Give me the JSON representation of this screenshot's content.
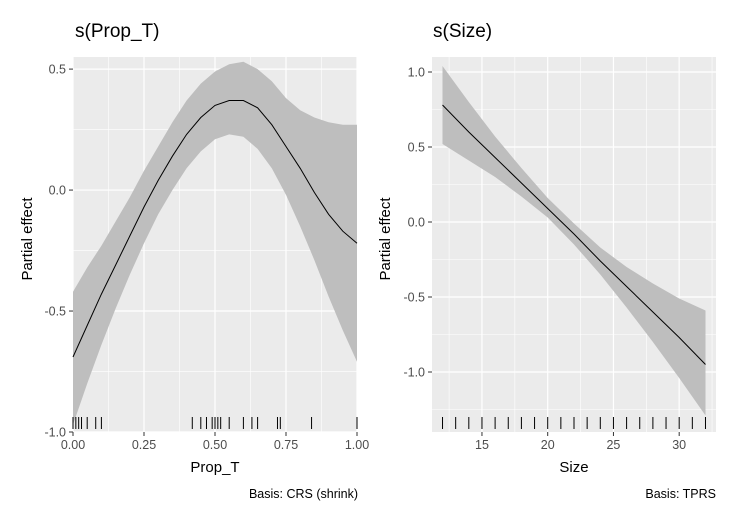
{
  "chart_data": [
    {
      "type": "line",
      "title": "s(Prop_T)",
      "xlabel": "Prop_T",
      "ylabel": "Partial effect",
      "caption": "Basis: CRS (shrink)",
      "xlim": [
        0.0,
        1.0
      ],
      "ylim": [
        -1.0,
        0.55
      ],
      "x_ticks": [
        0.0,
        0.25,
        0.5,
        0.75,
        1.0
      ],
      "x_tick_labels": [
        "0.00",
        "0.25",
        "0.50",
        "0.75",
        "1.00"
      ],
      "y_ticks": [
        -1.0,
        -0.5,
        0.0,
        0.5
      ],
      "y_tick_labels": [
        "-1.0",
        "-0.5",
        "0.0",
        "0.5"
      ],
      "series": [
        {
          "x": [
            0.0,
            0.05,
            0.1,
            0.15,
            0.2,
            0.25,
            0.3,
            0.35,
            0.4,
            0.45,
            0.5,
            0.55,
            0.6,
            0.65,
            0.7,
            0.75,
            0.8,
            0.85,
            0.9,
            0.95,
            1.0
          ],
          "y": [
            -0.69,
            -0.56,
            -0.43,
            -0.31,
            -0.19,
            -0.07,
            0.04,
            0.14,
            0.23,
            0.3,
            0.35,
            0.37,
            0.37,
            0.34,
            0.27,
            0.18,
            0.09,
            -0.01,
            -0.1,
            -0.17,
            -0.22
          ],
          "lower": [
            -0.97,
            -0.8,
            -0.64,
            -0.49,
            -0.35,
            -0.22,
            -0.1,
            0.0,
            0.09,
            0.16,
            0.21,
            0.23,
            0.22,
            0.17,
            0.09,
            -0.02,
            -0.15,
            -0.29,
            -0.44,
            -0.58,
            -0.71
          ],
          "upper": [
            -0.42,
            -0.32,
            -0.23,
            -0.13,
            -0.03,
            0.08,
            0.18,
            0.28,
            0.37,
            0.44,
            0.49,
            0.52,
            0.53,
            0.5,
            0.45,
            0.38,
            0.33,
            0.3,
            0.28,
            0.27,
            0.27
          ]
        }
      ],
      "rug": [
        0.0,
        0.01,
        0.02,
        0.03,
        0.05,
        0.08,
        0.1,
        0.42,
        0.45,
        0.47,
        0.49,
        0.5,
        0.51,
        0.52,
        0.55,
        0.6,
        0.63,
        0.65,
        0.72,
        0.73,
        0.84,
        1.0
      ],
      "grid": true
    },
    {
      "type": "line",
      "title": "s(Size)",
      "xlabel": "Size",
      "ylabel": "Partial effect",
      "caption": "Basis: TPRS",
      "xlim": [
        11.2,
        32.8
      ],
      "ylim": [
        -1.4,
        1.1
      ],
      "x_ticks": [
        15,
        20,
        25,
        30
      ],
      "x_tick_labels": [
        "15",
        "20",
        "25",
        "30"
      ],
      "y_ticks": [
        -1.0,
        -0.5,
        0.0,
        0.5,
        1.0
      ],
      "y_tick_labels": [
        "-1.0",
        "-0.5",
        "0.0",
        "0.5",
        "1.0"
      ],
      "series": [
        {
          "x": [
            12,
            14,
            16,
            18,
            20,
            22,
            24,
            26,
            28,
            30,
            32
          ],
          "y": [
            0.78,
            0.6,
            0.43,
            0.26,
            0.09,
            -0.08,
            -0.26,
            -0.43,
            -0.6,
            -0.77,
            -0.95
          ],
          "lower": [
            0.52,
            0.41,
            0.3,
            0.17,
            0.03,
            -0.15,
            -0.35,
            -0.57,
            -0.8,
            -1.04,
            -1.29
          ],
          "upper": [
            1.04,
            0.8,
            0.57,
            0.36,
            0.16,
            -0.01,
            -0.17,
            -0.3,
            -0.41,
            -0.51,
            -0.59
          ]
        }
      ],
      "rug": [
        12,
        13,
        14,
        15,
        16,
        17,
        18,
        19,
        20,
        21,
        22,
        23,
        24,
        25,
        26,
        27,
        28,
        29,
        30,
        31,
        32
      ],
      "grid": true
    }
  ],
  "colors": {
    "panel_bg": "#EBEBEB",
    "grid": "#FFFFFF",
    "ribbon": "#BEBEBE",
    "line": "#000000",
    "tick_text": "#4D4D4D"
  }
}
